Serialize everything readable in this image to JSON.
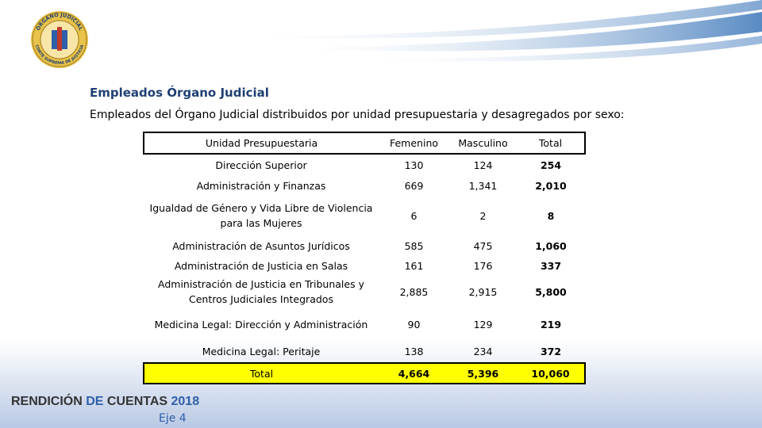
{
  "logo": {
    "top_text": "ÓRGANO JUDICIAL",
    "bottom_text": "CORTE SUPREMA DE JUSTICIA"
  },
  "header": {
    "title": "Empleados Órgano Judicial",
    "subtitle": "Empleados del Órgano Judicial distribuidos por unidad presupuestaria y desagregados por sexo:"
  },
  "table": {
    "columns": [
      "Unidad Presupuestaria",
      "Femenino",
      "Masculino",
      "Total"
    ],
    "rows": [
      [
        "Dirección Superior",
        "130",
        "124",
        "254"
      ],
      [
        "Administración y Finanzas",
        "669",
        "1,341",
        "2,010"
      ],
      [
        "Igualdad de Género y Vida Libre de Violencia para las Mujeres",
        "6",
        "2",
        "8"
      ],
      [
        "Administración de Asuntos Jurídicos",
        "585",
        "475",
        "1,060"
      ],
      [
        "Administración de Justicia en Salas",
        "161",
        "176",
        "337"
      ],
      [
        "Administración de Justicia en Tribunales y Centros Judiciales Integrados",
        "2,885",
        "2,915",
        "5,800"
      ],
      [
        "Medicina Legal:  Dirección y Administración",
        "90",
        "129",
        "219"
      ],
      [
        "Medicina Legal: Peritaje",
        "138",
        "234",
        "372"
      ]
    ],
    "total": [
      "Total",
      "4,664",
      "5,396",
      "10,060"
    ]
  },
  "footer": {
    "parts": [
      "RENDICIÓN ",
      "DE ",
      "CUENTAS ",
      "2018"
    ],
    "section": "Eje 4"
  }
}
